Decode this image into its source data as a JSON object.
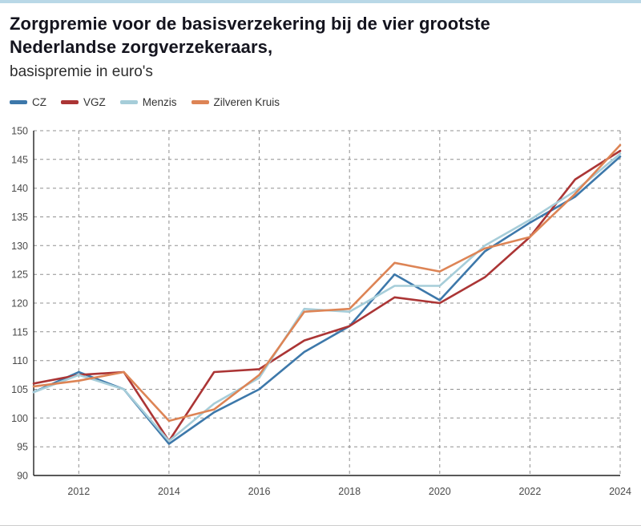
{
  "page": {
    "title_line1": "Zorgpremie voor de basisverzekering bij de vier grootste",
    "title_line2": "Nederlandse zorgverzekeraars,",
    "subtitle": "basispremie in euro's"
  },
  "chart_data": {
    "type": "line",
    "title": "Zorgpremie voor de basisverzekering bij de vier grootste Nederlandse zorgverzekeraars",
    "subtitle": "basispremie in euro's",
    "xlabel": "",
    "ylabel": "",
    "x": [
      2011,
      2012,
      2013,
      2014,
      2015,
      2016,
      2017,
      2018,
      2019,
      2020,
      2021,
      2022,
      2023,
      2024
    ],
    "xticks": [
      2012,
      2014,
      2016,
      2018,
      2020,
      2022,
      2024
    ],
    "ylim": [
      90,
      150
    ],
    "ytick_step": 5,
    "grid": "dashed",
    "legend_position": "top-left",
    "series": [
      {
        "name": "CZ",
        "color": "#3d78aa",
        "values": [
          104.5,
          108.0,
          105.0,
          95.5,
          101.0,
          105.0,
          111.5,
          116.0,
          125.0,
          120.5,
          129.0,
          134.0,
          138.5,
          145.5
        ]
      },
      {
        "name": "VGZ",
        "color": "#ab3535",
        "values": [
          106.0,
          107.5,
          108.0,
          96.0,
          108.0,
          108.5,
          113.5,
          116.0,
          121.0,
          120.0,
          124.5,
          131.5,
          141.5,
          146.5
        ]
      },
      {
        "name": "Menzis",
        "color": "#a6cdd9",
        "values": [
          104.5,
          107.5,
          105.0,
          96.0,
          102.5,
          107.0,
          119.0,
          118.5,
          123.0,
          123.0,
          130.0,
          134.5,
          139.5,
          146.0
        ]
      },
      {
        "name": "Zilveren Kruis",
        "color": "#dd8455",
        "values": [
          105.5,
          106.5,
          108.0,
          99.5,
          101.5,
          107.5,
          118.5,
          119.0,
          127.0,
          125.5,
          129.5,
          131.5,
          139.0,
          147.5
        ]
      }
    ]
  }
}
